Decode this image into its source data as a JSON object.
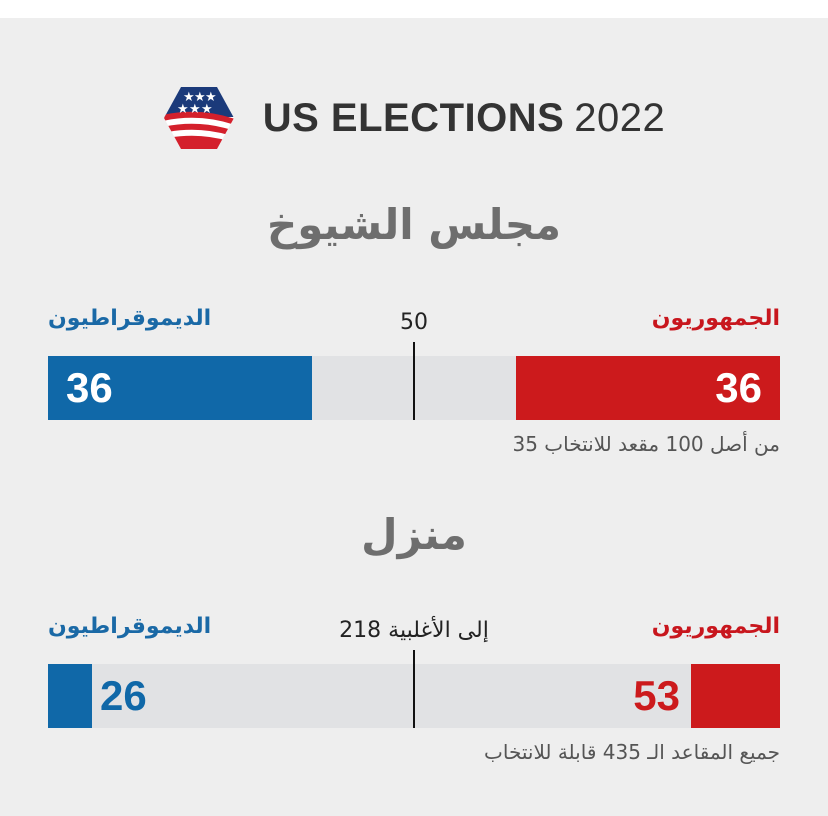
{
  "header": {
    "title": "US ELECTIONS",
    "year": "2022",
    "logo_icon": "us-flag-hexagon-icon"
  },
  "colors": {
    "democrat": "#1068a8",
    "republican": "#cc1a1c",
    "track": "#e1e2e4",
    "title_gray": "#6e6e6e"
  },
  "chart_data": [
    {
      "type": "bar",
      "title": "مجلس الشيوخ",
      "majority_label": "50",
      "majority_value": 50,
      "total": 100,
      "note": "من أصل 100 مقعد للانتخاب 35",
      "series": [
        {
          "name": "الديموقراطيون",
          "value": 36,
          "label": "36"
        },
        {
          "name": "الجمهوريون",
          "value": 36,
          "label": "36"
        }
      ]
    },
    {
      "type": "bar",
      "title": "منزل",
      "majority_label": "إلى الأغلبية 218",
      "majority_value": 218,
      "total": 435,
      "note": "جميع المقاعد الـ 435 قابلة للانتخاب",
      "series": [
        {
          "name": "الديموقراطيون",
          "value": 26,
          "label": "26"
        },
        {
          "name": "الجمهوريون",
          "value": 53,
          "label": "53"
        }
      ]
    }
  ]
}
